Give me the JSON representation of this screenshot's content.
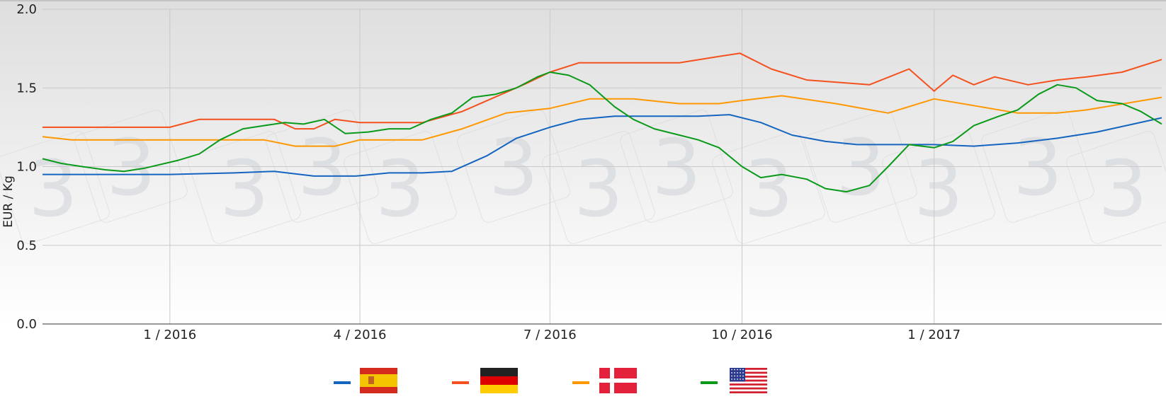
{
  "chart_data": {
    "type": "line",
    "title": "",
    "xlabel": "",
    "ylabel": "EUR / Kg",
    "ylim": [
      0.0,
      2.0
    ],
    "xlim": [
      "2015-11-01",
      "2017-04-20"
    ],
    "y_ticks": [
      "0.0",
      "0.5",
      "1.0",
      "1.5",
      "2.0"
    ],
    "x_ticks": [
      {
        "date": "2016-01-01",
        "label": "1 / 2016"
      },
      {
        "date": "2016-04-01",
        "label": "4 / 2016"
      },
      {
        "date": "2016-07-01",
        "label": "7 / 2016"
      },
      {
        "date": "2016-10-01",
        "label": "10 / 2016"
      },
      {
        "date": "2017-01-01",
        "label": "1 / 2017"
      }
    ],
    "grid": true,
    "legend_position": "bottom",
    "series": [
      {
        "color": "#1565c0",
        "flag": "spain-flag",
        "x": [
          "2015-11-01",
          "2016-01-01",
          "2016-02-01",
          "2016-02-20",
          "2016-03-10",
          "2016-03-30",
          "2016-04-15",
          "2016-05-01",
          "2016-05-15",
          "2016-06-01",
          "2016-06-15",
          "2016-07-01",
          "2016-07-15",
          "2016-08-01",
          "2016-08-20",
          "2016-09-10",
          "2016-09-25",
          "2016-10-10",
          "2016-10-25",
          "2016-11-10",
          "2016-11-25",
          "2017-01-01",
          "2017-01-20",
          "2017-02-10",
          "2017-03-01",
          "2017-03-20",
          "2017-04-20"
        ],
        "y": [
          0.95,
          0.95,
          0.96,
          0.97,
          0.94,
          0.94,
          0.96,
          0.96,
          0.97,
          1.07,
          1.18,
          1.25,
          1.3,
          1.32,
          1.32,
          1.32,
          1.33,
          1.28,
          1.2,
          1.16,
          1.14,
          1.14,
          1.13,
          1.15,
          1.18,
          1.22,
          1.31
        ]
      },
      {
        "color": "#f4511e",
        "flag": "germany-flag",
        "x": [
          "2015-11-01",
          "2016-01-01",
          "2016-01-15",
          "2016-02-20",
          "2016-03-01",
          "2016-03-10",
          "2016-03-20",
          "2016-04-01",
          "2016-05-01",
          "2016-05-20",
          "2016-06-01",
          "2016-06-20",
          "2016-07-01",
          "2016-07-15",
          "2016-08-01",
          "2016-09-01",
          "2016-09-20",
          "2016-09-30",
          "2016-10-15",
          "2016-11-01",
          "2016-12-01",
          "2016-12-20",
          "2017-01-01",
          "2017-01-10",
          "2017-01-20",
          "2017-01-30",
          "2017-02-15",
          "2017-03-01",
          "2017-03-15",
          "2017-04-01",
          "2017-04-20"
        ],
        "y": [
          1.25,
          1.25,
          1.3,
          1.3,
          1.24,
          1.24,
          1.3,
          1.28,
          1.28,
          1.35,
          1.42,
          1.53,
          1.6,
          1.66,
          1.66,
          1.66,
          1.7,
          1.72,
          1.62,
          1.55,
          1.52,
          1.62,
          1.48,
          1.58,
          1.52,
          1.57,
          1.52,
          1.55,
          1.57,
          1.6,
          1.68
        ]
      },
      {
        "color": "#ff9800",
        "flag": "denmark-flag",
        "x": [
          "2015-11-01",
          "2015-11-15",
          "2016-02-15",
          "2016-03-01",
          "2016-03-20",
          "2016-04-01",
          "2016-05-01",
          "2016-05-20",
          "2016-06-10",
          "2016-07-01",
          "2016-07-20",
          "2016-08-10",
          "2016-09-01",
          "2016-09-20",
          "2016-10-01",
          "2016-10-20",
          "2016-11-15",
          "2016-12-10",
          "2017-01-01",
          "2017-02-10",
          "2017-03-01",
          "2017-03-15",
          "2017-04-20"
        ],
        "y": [
          1.19,
          1.17,
          1.17,
          1.13,
          1.13,
          1.17,
          1.17,
          1.24,
          1.34,
          1.37,
          1.43,
          1.43,
          1.4,
          1.4,
          1.42,
          1.45,
          1.4,
          1.34,
          1.43,
          1.34,
          1.34,
          1.36,
          1.44
        ]
      },
      {
        "color": "#0a9a1a",
        "flag": "usa-flag",
        "x": [
          "2015-11-01",
          "2015-11-10",
          "2015-11-20",
          "2015-12-01",
          "2015-12-10",
          "2015-12-20",
          "2016-01-05",
          "2016-01-15",
          "2016-01-25",
          "2016-02-05",
          "2016-02-15",
          "2016-02-25",
          "2016-03-05",
          "2016-03-15",
          "2016-03-25",
          "2016-04-05",
          "2016-04-15",
          "2016-04-25",
          "2016-05-05",
          "2016-05-15",
          "2016-05-25",
          "2016-06-05",
          "2016-06-15",
          "2016-06-25",
          "2016-07-01",
          "2016-07-10",
          "2016-07-20",
          "2016-08-01",
          "2016-08-10",
          "2016-08-20",
          "2016-09-01",
          "2016-09-10",
          "2016-09-20",
          "2016-10-01",
          "2016-10-10",
          "2016-10-20",
          "2016-11-01",
          "2016-11-10",
          "2016-11-20",
          "2016-12-01",
          "2016-12-10",
          "2016-12-20",
          "2017-01-01",
          "2017-01-10",
          "2017-01-20",
          "2017-02-01",
          "2017-02-10",
          "2017-02-20",
          "2017-03-01",
          "2017-03-10",
          "2017-03-20",
          "2017-04-01",
          "2017-04-10",
          "2017-04-20"
        ],
        "y": [
          1.05,
          1.02,
          1.0,
          0.98,
          0.97,
          0.99,
          1.04,
          1.08,
          1.17,
          1.24,
          1.26,
          1.28,
          1.27,
          1.3,
          1.21,
          1.22,
          1.24,
          1.24,
          1.3,
          1.34,
          1.44,
          1.46,
          1.5,
          1.57,
          1.6,
          1.58,
          1.52,
          1.38,
          1.3,
          1.24,
          1.2,
          1.17,
          1.12,
          1.0,
          0.93,
          0.95,
          0.92,
          0.86,
          0.84,
          0.88,
          1.0,
          1.14,
          1.12,
          1.16,
          1.26,
          1.32,
          1.36,
          1.46,
          1.52,
          1.5,
          1.42,
          1.4,
          1.35,
          1.27
        ]
      }
    ]
  }
}
